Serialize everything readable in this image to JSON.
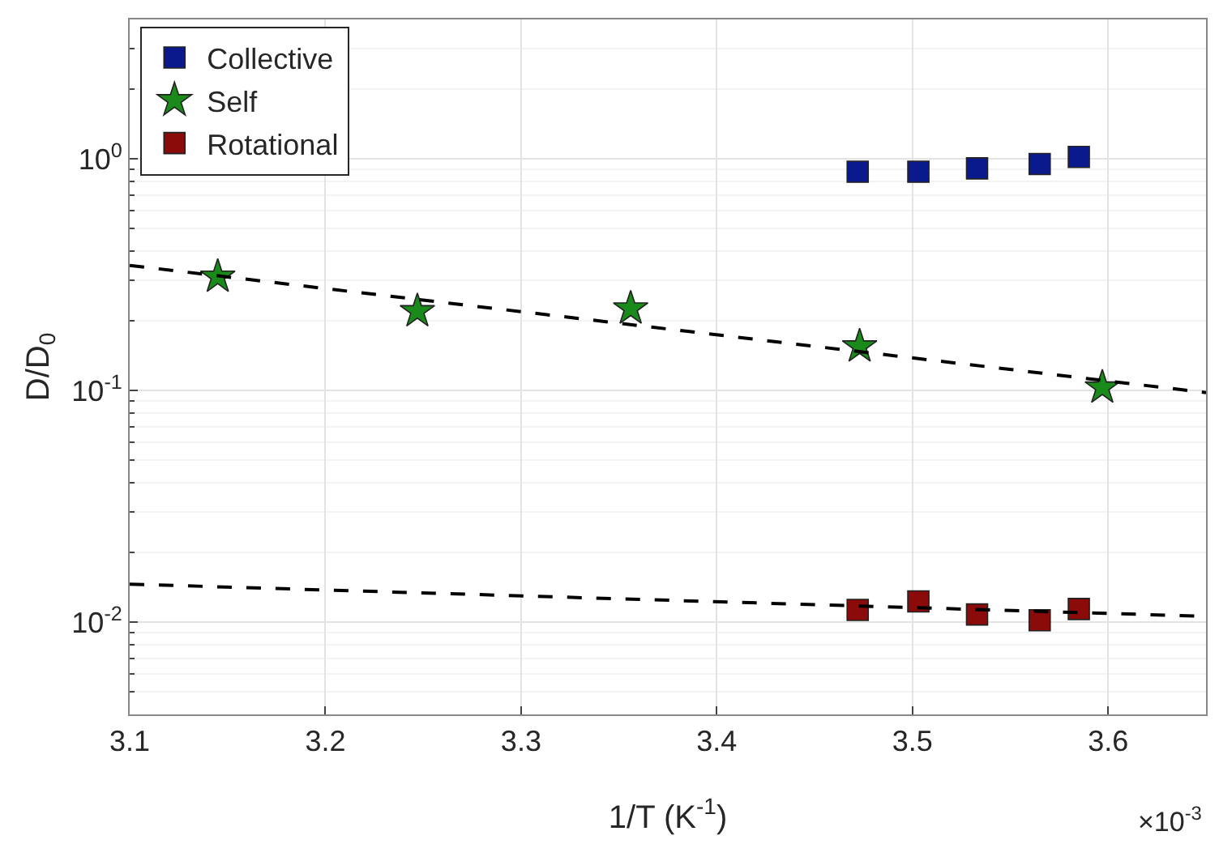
{
  "chart_data": {
    "type": "scatter",
    "xlabel": "1/T (K$^{-1}$)",
    "ylabel": "D/D$_{0}$",
    "log": "y",
    "grid": true,
    "legend": "top left",
    "xlim": [
      3.1,
      3.65
    ],
    "xticks": [
      3.1,
      3.2,
      3.3,
      3.4,
      3.5,
      3.6
    ],
    "ylim": [
      0.004,
      4
    ],
    "yticks": [
      {
        "value": 0.01,
        "label": "10$^{-2}$"
      },
      {
        "value": 0.1,
        "label": "10$^{-1}$"
      },
      {
        "value": 1,
        "label": "10$^{0}$"
      }
    ],
    "annotations": [
      "×10$^{-3}$"
    ],
    "series": [
      {
        "name": "Collective",
        "color": "#0a1a8c",
        "marker": "square",
        "x": [
          3.472,
          3.503,
          3.533,
          3.565,
          3.585
        ],
        "values": [
          0.88,
          0.88,
          0.91,
          0.95,
          1.02
        ]
      },
      {
        "name": "Self",
        "color": "#1a8a1a",
        "marker": "star",
        "x": [
          3.145,
          3.247,
          3.356,
          3.473,
          3.597
        ],
        "values": [
          0.31,
          0.22,
          0.226,
          0.155,
          0.103
        ]
      },
      {
        "name": "Rotational",
        "color": "#8b0a0a",
        "marker": "square",
        "x": [
          3.472,
          3.503,
          3.533,
          3.565,
          3.585
        ],
        "values": [
          0.0113,
          0.0123,
          0.0108,
          0.0102,
          0.0114
        ]
      },
      {
        "type": "line",
        "color": "#000000",
        "marker": "none",
        "line_style": "dashed",
        "x": [
          3.1,
          3.65
        ],
        "values": [
          0.347,
          0.098
        ]
      },
      {
        "type": "line",
        "color": "#000000",
        "marker": "none",
        "line_style": "dashed",
        "x": [
          3.1,
          3.65
        ],
        "values": [
          0.0146,
          0.0106
        ]
      }
    ]
  }
}
